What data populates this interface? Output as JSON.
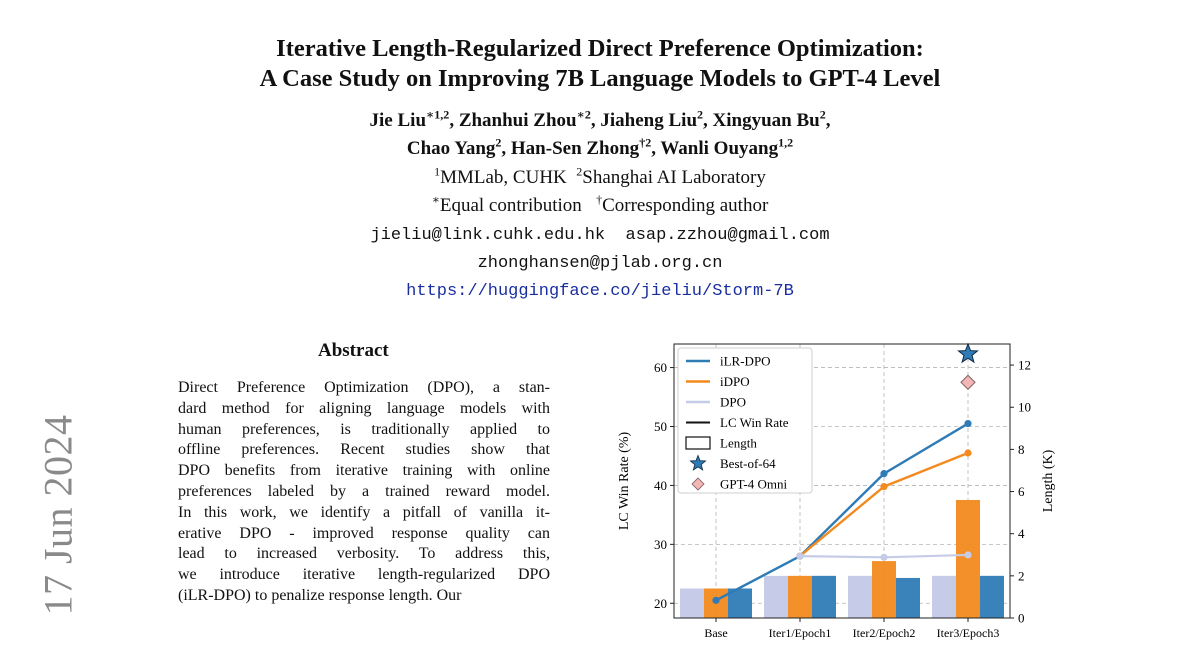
{
  "side_date": "17 Jun 2024",
  "title": {
    "line1": "Iterative Length-Regularized Direct Preference Optimization:",
    "line2": "A Case Study on Improving 7B Language Models to GPT-4 Level"
  },
  "authors": [
    {
      "name": "Jie Liu",
      "sup": "∗1,2",
      "sep": ", "
    },
    {
      "name": "Zhanhui Zhou",
      "sup": "∗2",
      "sep": ", "
    },
    {
      "name": "Jiaheng Liu",
      "sup": "2",
      "sep": ", "
    },
    {
      "name": "Xingyuan Bu",
      "sup": "2",
      "sep": ","
    },
    {
      "name": "Chao Yang",
      "sup": "2",
      "sep": ", "
    },
    {
      "name": "Han-Sen Zhong",
      "sup": "†2",
      "sep": ", "
    },
    {
      "name": "Wanli Ouyang",
      "sup": "1,2",
      "sep": ""
    }
  ],
  "affiliations": [
    {
      "sup": "1",
      "text": "MMLab, CUHK"
    },
    {
      "sup": "2",
      "text": "Shanghai AI Laboratory"
    }
  ],
  "notes": [
    {
      "sup": "∗",
      "text": "Equal contribution"
    },
    {
      "sup": "†",
      "text": "Corresponding author"
    }
  ],
  "emails_line1": "jieliu@link.cuhk.edu.hk  asap.zzhou@gmail.com",
  "emails_line2": "zhonghansen@pjlab.org.cn",
  "url": "https://huggingface.co/jieliu/Storm-7B",
  "abstract_title": "Abstract",
  "abstract_lines": [
    "Direct Preference Optimization (DPO), a stan-",
    "dard method for aligning language models with",
    "human preferences, is traditionally applied to",
    "offline preferences.  Recent studies show that",
    "DPO benefits from iterative training with online",
    "preferences labeled by a trained reward model.",
    "In this work, we identify a pitfall of vanilla it-",
    "erative DPO - improved response quality can",
    "lead to increased verbosity.  To address this,",
    "we introduce iterative length-regularized DPO",
    "(iLR-DPO) to penalize response length.  Our"
  ],
  "chart_data": {
    "type": "bar+line",
    "categories": [
      "Base",
      "Iter1/Epoch1",
      "Iter2/Epoch2",
      "Iter3/Epoch3"
    ],
    "ylabel": "LC Win Rate (%)",
    "y2label": "Length (K)",
    "ylim": [
      17.5,
      64
    ],
    "y2lim": [
      0,
      13
    ],
    "yticks": [
      20,
      30,
      40,
      50,
      60
    ],
    "y2ticks": [
      0,
      2,
      4,
      6,
      8,
      10,
      12
    ],
    "grid": true,
    "legend_position": "top-left",
    "colors": {
      "ilr": "#2f7bb6",
      "idpo": "#f38a1f",
      "dpo": "#c6cbe7"
    },
    "lc_win_rate": [
      {
        "name": "iLR-DPO",
        "values": [
          20.5,
          28.0,
          42.0,
          50.5
        ]
      },
      {
        "name": "iDPO",
        "values": [
          null,
          28.0,
          39.8,
          45.5
        ]
      },
      {
        "name": "DPO",
        "values": [
          null,
          28.0,
          27.8,
          28.2
        ]
      }
    ],
    "length": [
      {
        "name": "DPO",
        "values": [
          1.4,
          2.0,
          2.0,
          2.0
        ]
      },
      {
        "name": "iDPO",
        "values": [
          1.4,
          2.0,
          2.7,
          5.6
        ]
      },
      {
        "name": "iLR-DPO",
        "values": [
          1.4,
          2.0,
          1.9,
          2.0
        ]
      }
    ],
    "best_of_64": {
      "category": "Iter3/Epoch3",
      "value": 62.3
    },
    "gpt4_omni": {
      "category": "Iter3/Epoch3",
      "value": 57.5
    },
    "legend": [
      "iLR-DPO",
      "iDPO",
      "DPO",
      "LC Win Rate",
      "Length",
      "Best-of-64",
      "GPT-4 Omni"
    ]
  }
}
